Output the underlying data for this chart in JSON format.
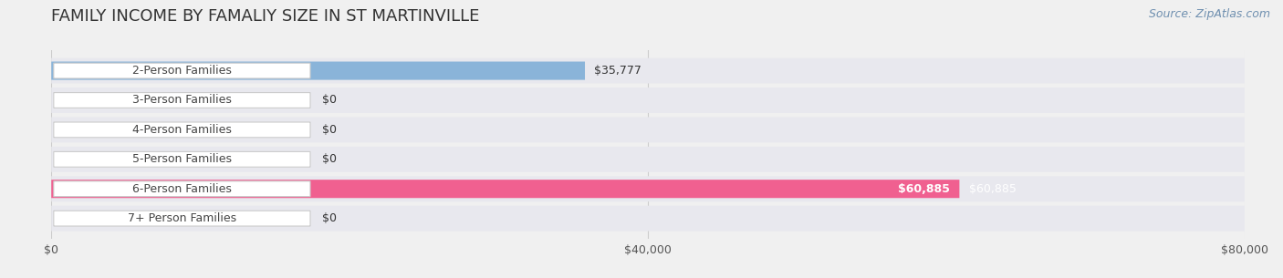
{
  "title": "FAMILY INCOME BY FAMALIY SIZE IN ST MARTINVILLE",
  "source": "Source: ZipAtlas.com",
  "categories": [
    "2-Person Families",
    "3-Person Families",
    "4-Person Families",
    "5-Person Families",
    "6-Person Families",
    "7+ Person Families"
  ],
  "values": [
    35777,
    0,
    0,
    0,
    60885,
    0
  ],
  "bar_colors": [
    "#8ab4d9",
    "#c9a8d4",
    "#6ec4b8",
    "#a8a8d8",
    "#f06090",
    "#f5d0a0"
  ],
  "label_colors": [
    "#000000",
    "#000000",
    "#000000",
    "#000000",
    "#ffffff",
    "#000000"
  ],
  "x_max": 80000,
  "x_ticks": [
    0,
    40000,
    80000
  ],
  "x_tick_labels": [
    "$0",
    "$40,000",
    "$80,000"
  ],
  "background_color": "#f0f0f0",
  "bar_bg_color": "#e8e8ee",
  "title_fontsize": 13,
  "source_fontsize": 9,
  "label_fontsize": 9,
  "value_fontsize": 9,
  "tick_fontsize": 9
}
